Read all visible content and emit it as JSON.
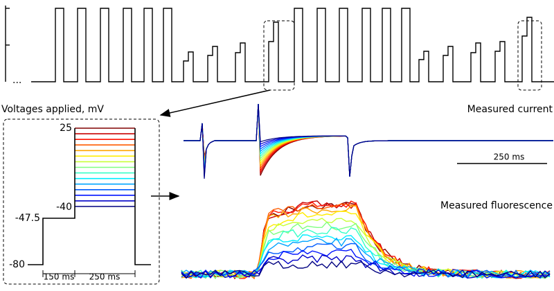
{
  "labels": {
    "voltages_applied": "Voltages applied, mV",
    "measured_current": "Measured current",
    "measured_fluorescence": "Measured fluorescence",
    "ellipsis": "..."
  },
  "voltage_protocol": {
    "levels": [
      "25",
      "-40",
      "-47.5",
      "-80"
    ],
    "durations": [
      "150 ms",
      "250 ms"
    ]
  },
  "current_scale_bar": "250 ms"
}
